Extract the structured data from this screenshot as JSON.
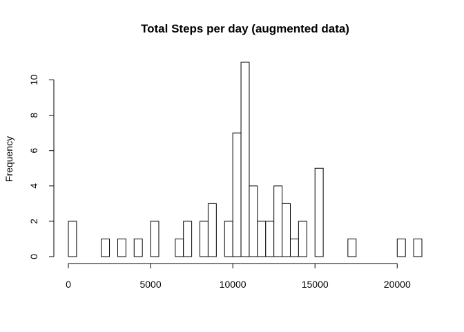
{
  "chart_data": {
    "type": "bar",
    "title": "Total Steps per day (augmented data)",
    "xlabel": "",
    "ylabel": "Frequency",
    "bin_width": 500,
    "bins_start": 0,
    "bins_end": 21500,
    "counts": [
      2,
      0,
      0,
      0,
      1,
      0,
      1,
      0,
      1,
      0,
      2,
      0,
      0,
      1,
      2,
      0,
      2,
      3,
      0,
      2,
      7,
      11,
      4,
      2,
      2,
      4,
      3,
      1,
      2,
      0,
      5,
      0,
      0,
      0,
      1,
      0,
      0,
      0,
      0,
      0,
      1,
      0,
      1
    ],
    "xlim": [
      0,
      21500
    ],
    "ylim": [
      0,
      11
    ],
    "xticks": [
      0,
      5000,
      10000,
      15000,
      20000
    ],
    "xtick_labels": [
      "0",
      "5000",
      "10000",
      "15000",
      "20000"
    ],
    "yticks": [
      0,
      2,
      4,
      6,
      8,
      10
    ],
    "ytick_labels": [
      "0",
      "2",
      "4",
      "6",
      "8",
      "10"
    ],
    "grid": false,
    "bar_fill": "#ffffff",
    "bar_stroke": "#000000"
  }
}
